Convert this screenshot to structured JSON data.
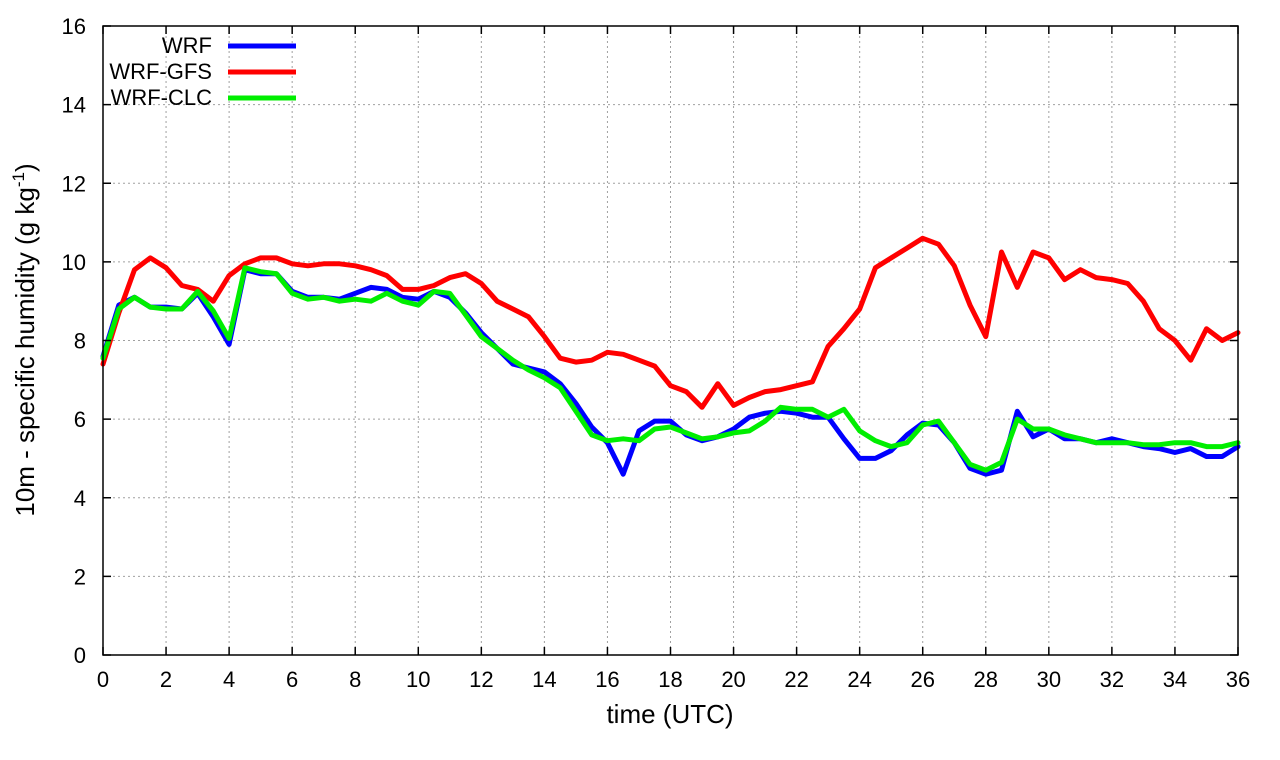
{
  "chart_data": {
    "type": "line",
    "xlabel": "time (UTC)",
    "ylabel_main": "10m - specific humidity (g kg",
    "ylabel_sup": "-1",
    "ylabel_close": ")",
    "xlim": [
      0,
      36
    ],
    "ylim": [
      0,
      16
    ],
    "xticks": [
      0,
      2,
      4,
      6,
      8,
      10,
      12,
      14,
      16,
      18,
      20,
      22,
      24,
      26,
      28,
      30,
      32,
      34,
      36
    ],
    "yticks": [
      0,
      2,
      4,
      6,
      8,
      10,
      12,
      14,
      16
    ],
    "grid": true,
    "legend_position": "top-left",
    "x": [
      0,
      0.5,
      1,
      1.5,
      2,
      2.5,
      3,
      3.5,
      4,
      4.5,
      5,
      5.5,
      6,
      6.5,
      7,
      7.5,
      8,
      8.5,
      9,
      9.5,
      10,
      10.5,
      11,
      11.5,
      12,
      12.5,
      13,
      13.5,
      14,
      14.5,
      15,
      15.5,
      16,
      16.5,
      17,
      17.5,
      18,
      18.5,
      19,
      19.5,
      20,
      20.5,
      21,
      21.5,
      22,
      22.5,
      23,
      23.5,
      24,
      24.5,
      25,
      25.5,
      26,
      26.5,
      27,
      27.5,
      28,
      28.5,
      29,
      29.5,
      30,
      30.5,
      31,
      31.5,
      32,
      32.5,
      33,
      33.5,
      34,
      34.5,
      35,
      35.5,
      36
    ],
    "series": [
      {
        "name": "WRF",
        "color": "#0000ff",
        "values": [
          7.6,
          8.9,
          9.1,
          8.85,
          8.85,
          8.8,
          9.2,
          8.6,
          7.9,
          9.8,
          9.7,
          9.7,
          9.25,
          9.1,
          9.1,
          9.05,
          9.2,
          9.35,
          9.3,
          9.1,
          9.05,
          9.25,
          9.1,
          8.7,
          8.2,
          7.8,
          7.4,
          7.3,
          7.2,
          6.9,
          6.4,
          5.8,
          5.4,
          4.6,
          5.7,
          5.95,
          5.95,
          5.6,
          5.45,
          5.55,
          5.75,
          6.05,
          6.15,
          6.2,
          6.15,
          6.05,
          6.05,
          5.5,
          5.0,
          5.0,
          5.2,
          5.6,
          5.9,
          5.85,
          5.4,
          4.75,
          4.6,
          4.7,
          6.2,
          5.55,
          5.75,
          5.5,
          5.5,
          5.4,
          5.5,
          5.4,
          5.3,
          5.25,
          5.15,
          5.25,
          5.05,
          5.05,
          5.3
        ]
      },
      {
        "name": "WRF-GFS",
        "color": "#ff0000",
        "values": [
          7.4,
          8.7,
          9.8,
          10.1,
          9.85,
          9.4,
          9.3,
          9.0,
          9.65,
          9.95,
          10.1,
          10.1,
          9.95,
          9.9,
          9.95,
          9.95,
          9.9,
          9.8,
          9.65,
          9.3,
          9.3,
          9.4,
          9.6,
          9.7,
          9.45,
          9.0,
          8.8,
          8.6,
          8.1,
          7.55,
          7.45,
          7.5,
          7.7,
          7.65,
          7.5,
          7.35,
          6.85,
          6.7,
          6.3,
          6.9,
          6.35,
          6.55,
          6.7,
          6.75,
          6.85,
          6.95,
          7.85,
          8.3,
          8.8,
          9.85,
          10.1,
          10.35,
          10.6,
          10.45,
          9.9,
          8.9,
          8.1,
          10.25,
          9.35,
          10.25,
          10.1,
          9.55,
          9.8,
          9.6,
          9.55,
          9.45,
          9.0,
          8.3,
          8.0,
          7.5,
          8.3,
          8.0,
          8.2
        ]
      },
      {
        "name": "WRF-CLC",
        "color": "#00ee00",
        "values": [
          7.55,
          8.8,
          9.1,
          8.85,
          8.8,
          8.8,
          9.25,
          8.75,
          8.05,
          9.85,
          9.75,
          9.7,
          9.2,
          9.05,
          9.1,
          9.0,
          9.05,
          9.0,
          9.2,
          9.0,
          8.9,
          9.25,
          9.2,
          8.65,
          8.1,
          7.8,
          7.5,
          7.25,
          7.05,
          6.8,
          6.2,
          5.6,
          5.45,
          5.5,
          5.45,
          5.75,
          5.8,
          5.65,
          5.5,
          5.55,
          5.65,
          5.7,
          5.95,
          6.3,
          6.25,
          6.25,
          6.05,
          6.25,
          5.7,
          5.45,
          5.3,
          5.4,
          5.85,
          5.95,
          5.4,
          4.85,
          4.7,
          4.9,
          6.0,
          5.75,
          5.75,
          5.6,
          5.5,
          5.4,
          5.4,
          5.4,
          5.35,
          5.35,
          5.4,
          5.4,
          5.3,
          5.3,
          5.4
        ]
      }
    ]
  }
}
